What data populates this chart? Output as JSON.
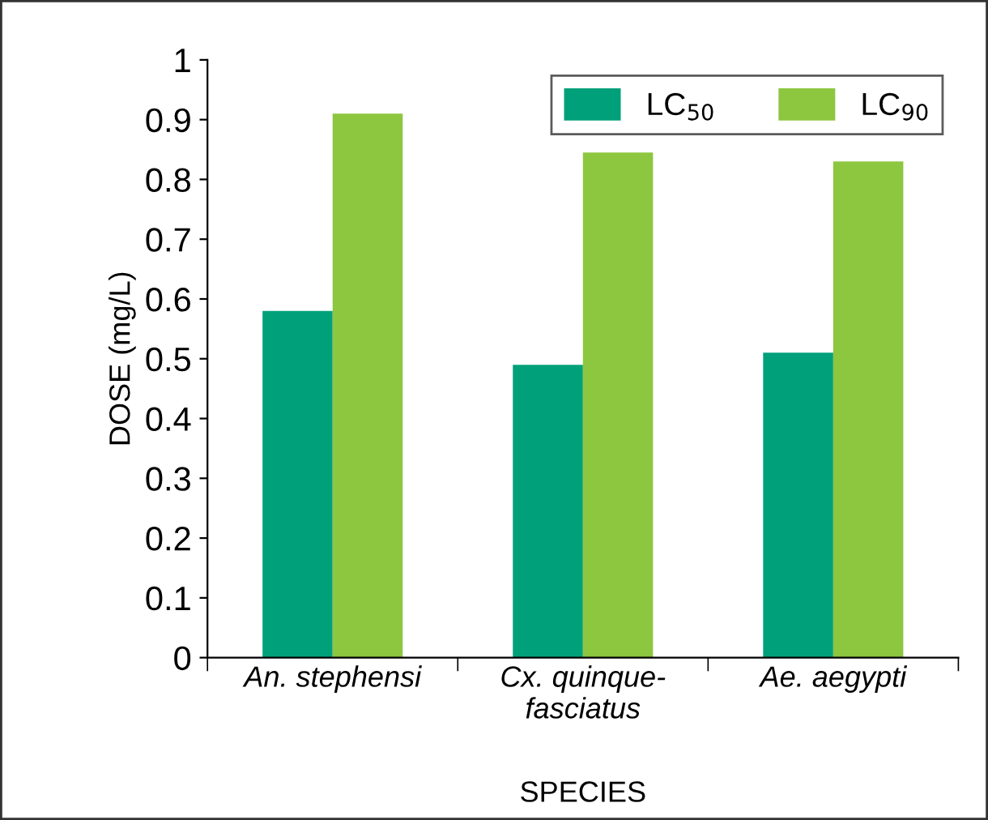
{
  "chart_data": {
    "type": "bar",
    "xlabel": "SPECIES",
    "ylabel": "DOSE (mg/L)",
    "categories": [
      "An. stephensi",
      "Cx. quinque-\nfasciatus",
      "Ae. aegypti"
    ],
    "series": [
      {
        "name": "LC$_{50}$",
        "color": "#00a07a",
        "values": [
          0.58,
          0.49,
          0.51
        ]
      },
      {
        "name": "LC$_{90}$",
        "color": "#8dc63f",
        "values": [
          0.91,
          0.845,
          0.83
        ]
      }
    ],
    "ylim": [
      0,
      1
    ],
    "yticks": [
      0,
      0.1,
      0.2,
      0.3,
      0.4,
      0.5,
      0.6,
      0.7,
      0.8,
      0.9,
      1
    ],
    "grid": false,
    "legend": "top right"
  }
}
